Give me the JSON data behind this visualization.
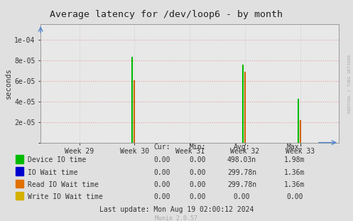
{
  "title": "Average latency for /dev/loop6 - by month",
  "ylabel": "seconds",
  "background_color": "#e0e0e0",
  "plot_bg_color": "#e8e8e8",
  "grid_color_h": "#e8a0a0",
  "grid_color_v": "#c8c8c8",
  "x_ticks": [
    29,
    30,
    31,
    32,
    33
  ],
  "x_tick_labels": [
    "Week 29",
    "Week 30",
    "Week 31",
    "Week 32",
    "Week 33"
  ],
  "ylim": [
    0,
    0.000115
  ],
  "y_ticks": [
    0,
    2e-05,
    4e-05,
    6e-05,
    8e-05,
    0.0001
  ],
  "y_tick_labels": [
    "",
    "2e-05",
    "4e-05",
    "6e-05",
    "8e-05",
    "1e-04"
  ],
  "spikes": [
    {
      "x": 30.0,
      "green": 8.3e-05,
      "orange": 6e-05
    },
    {
      "x": 32.0,
      "green": 7.5e-05,
      "orange": 6.8e-05
    },
    {
      "x": 33.0,
      "green": 4.2e-05,
      "orange": 2.1e-05
    }
  ],
  "legend_entries": [
    {
      "label": "Device IO time",
      "color": "#00bb00"
    },
    {
      "label": "IO Wait time",
      "color": "#0000cc"
    },
    {
      "label": "Read IO Wait time",
      "color": "#e07000"
    },
    {
      "label": "Write IO Wait time",
      "color": "#d4b000"
    }
  ],
  "table_headers": [
    "",
    "Cur:",
    "Min:",
    "Avg:",
    "Max:"
  ],
  "table_rows": [
    [
      "Device IO time",
      "0.00",
      "0.00",
      "498.03n",
      "1.98m"
    ],
    [
      "IO Wait time",
      "0.00",
      "0.00",
      "299.78n",
      "1.36m"
    ],
    [
      "Read IO Wait time",
      "0.00",
      "0.00",
      "299.78n",
      "1.36m"
    ],
    [
      "Write IO Wait time",
      "0.00",
      "0.00",
      "0.00",
      "0.00"
    ]
  ],
  "last_update": "Last update: Mon Aug 19 02:00:12 2024",
  "munin_label": "Munin 2.0.57",
  "rrdtool_label": "RRDTOOL / TOBI OETIKER",
  "title_color": "#222222",
  "text_color": "#333333",
  "spike_green": "#00bb00",
  "spike_orange": "#cc6600"
}
